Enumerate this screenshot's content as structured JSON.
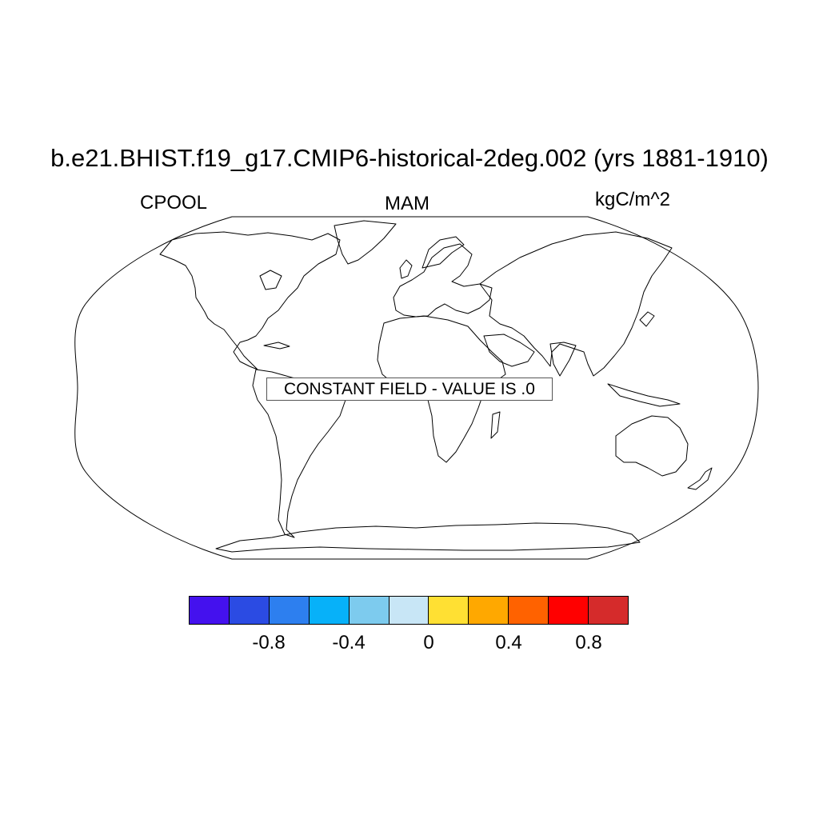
{
  "title": "b.e21.BHIST.f19_g17.CMIP6-historical-2deg.002 (yrs 1881-1910)",
  "left_label": "CPOOL",
  "center_label": "MAM",
  "right_label": "kgC/m^2",
  "message": "CONSTANT FIELD - VALUE IS .0",
  "colorbar": {
    "colors": [
      "#4411ee",
      "#2b4be3",
      "#2d7fef",
      "#07b1f9",
      "#7dcbee",
      "#c8e6f6",
      "#ffe033",
      "#ffa800",
      "#ff6200",
      "#ff0000",
      "#d52b2b"
    ],
    "ticks": [
      "-0.8",
      "-0.4",
      "0",
      "0.4",
      "0.8"
    ]
  },
  "map": {
    "projection": "robinson",
    "fill": "none",
    "coastline_color": "#000000"
  }
}
